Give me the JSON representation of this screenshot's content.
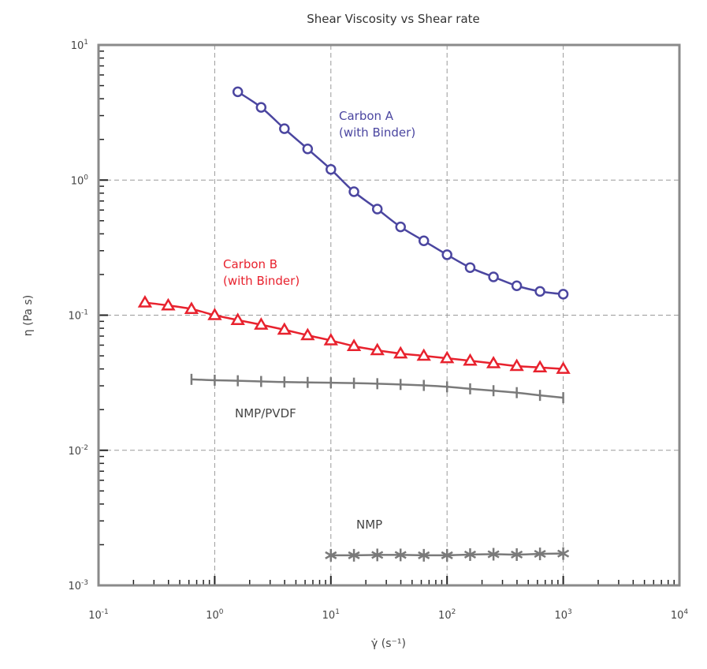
{
  "chart_data": {
    "type": "line",
    "title": "Shear Viscosity vs Shear rate",
    "xlabel": "γ̇ (s⁻¹)",
    "ylabel": "η (Pa s)",
    "x_scale": "log",
    "y_scale": "log",
    "xlim": [
      0.1,
      10000
    ],
    "ylim": [
      0.001,
      10
    ],
    "x_ticks": [
      {
        "base": "10",
        "exp": "-1"
      },
      {
        "base": "10",
        "exp": "0"
      },
      {
        "base": "10",
        "exp": "1"
      },
      {
        "base": "10",
        "exp": "2"
      },
      {
        "base": "10",
        "exp": "3"
      },
      {
        "base": "10",
        "exp": "4"
      }
    ],
    "y_ticks": [
      {
        "base": "10",
        "exp": "-3"
      },
      {
        "base": "10",
        "exp": "-2"
      },
      {
        "base": "10",
        "exp": "-1"
      },
      {
        "base": "10",
        "exp": "0"
      },
      {
        "base": "10",
        "exp": "1"
      }
    ],
    "grid": true,
    "series": [
      {
        "name": "Carbon A (with Binder)",
        "label_lines": [
          "Carbon A",
          "(with Binder)"
        ],
        "color": "#4b46a0",
        "marker": "circle",
        "x": [
          1.58,
          2.51,
          3.98,
          6.31,
          10,
          15.8,
          25.1,
          39.8,
          63.1,
          100,
          158,
          251,
          398,
          631,
          1000
        ],
        "y": [
          4.5,
          3.45,
          2.4,
          1.7,
          1.2,
          0.82,
          0.61,
          0.45,
          0.355,
          0.28,
          0.225,
          0.192,
          0.165,
          0.15,
          0.143
        ]
      },
      {
        "name": "Carbon B (with Binder)",
        "label_lines": [
          "Carbon B",
          "(with Binder)"
        ],
        "color": "#e8222e",
        "marker": "triangle",
        "x": [
          0.251,
          0.398,
          0.631,
          1,
          1.58,
          2.51,
          3.98,
          6.31,
          10,
          15.8,
          25.1,
          39.8,
          63.1,
          100,
          158,
          251,
          398,
          631,
          1000
        ],
        "y": [
          0.124,
          0.118,
          0.111,
          0.1,
          0.092,
          0.085,
          0.078,
          0.071,
          0.065,
          0.059,
          0.055,
          0.052,
          0.05,
          0.048,
          0.046,
          0.044,
          0.042,
          0.041,
          0.04
        ]
      },
      {
        "name": "NMP/PVDF",
        "label_lines": [
          "NMP/PVDF"
        ],
        "color": "#7a7a7a",
        "marker": "vtick",
        "x": [
          0.631,
          1,
          1.58,
          2.51,
          3.98,
          6.31,
          10,
          15.8,
          25.1,
          39.8,
          63.1,
          100,
          158,
          251,
          398,
          631,
          1000
        ],
        "y": [
          0.0335,
          0.033,
          0.0327,
          0.0323,
          0.032,
          0.0318,
          0.0316,
          0.0314,
          0.0311,
          0.0307,
          0.0302,
          0.0295,
          0.0285,
          0.0276,
          0.0267,
          0.0255,
          0.0245
        ]
      },
      {
        "name": "NMP",
        "label_lines": [
          "NMP"
        ],
        "color": "#7a7a7a",
        "marker": "asterisk",
        "x": [
          10,
          15.8,
          25.1,
          39.8,
          63.1,
          100,
          158,
          251,
          398,
          631,
          1000
        ],
        "y": [
          0.00167,
          0.00167,
          0.00168,
          0.00168,
          0.00167,
          0.00167,
          0.00169,
          0.0017,
          0.00169,
          0.00171,
          0.00172
        ]
      }
    ]
  }
}
